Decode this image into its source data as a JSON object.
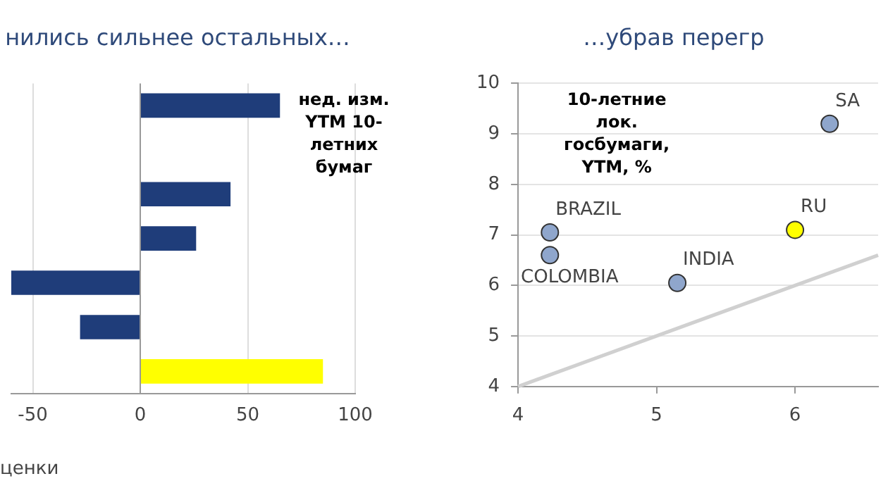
{
  "chart_data": [
    {
      "type": "bar",
      "orientation": "horizontal",
      "title": "нились сильнее остальных…",
      "categories": [
        null,
        null,
        null,
        null,
        null,
        null,
        null
      ],
      "values": [
        65,
        null,
        42,
        26,
        -60,
        -28,
        85
      ],
      "colors": [
        "#1f3d7a",
        "#1f3d7a",
        "#1f3d7a",
        "#1f3d7a",
        "#1f3d7a",
        "#1f3d7a",
        "#ffff00"
      ],
      "xlim": [
        -60,
        100
      ],
      "xticks": [
        -50,
        0,
        50,
        100
      ],
      "grid": "x",
      "legend": false,
      "annotations": [
        "нед. изм. YTM 10-летних бумаг",
        "ценки"
      ]
    },
    {
      "type": "scatter",
      "title": "…убрав перегр",
      "marker": "circle",
      "legend": false,
      "grid": "y",
      "xlim": [
        4,
        6.6
      ],
      "xticks": [
        4,
        5,
        6
      ],
      "ylim": [
        4,
        10
      ],
      "yticks": [
        4,
        5,
        6,
        7,
        8,
        9,
        10
      ],
      "series": [
        {
          "x": [
            4.23,
            4.23,
            5.15,
            6.0,
            6.25
          ],
          "values": [
            7.05,
            6.6,
            6.05,
            7.1,
            9.2
          ],
          "colors": [
            "#8fa6cc",
            "#8fa6cc",
            "#8fa6cc",
            "#ffff00",
            "#8fa6cc"
          ]
        },
        {
          "type": "line",
          "color": "#d0d0d0",
          "marker": "none",
          "x": [
            4,
            6.6
          ],
          "values": [
            4,
            6.6
          ]
        }
      ],
      "annotations": [
        "10-летние лок. госбумаги, YTM, %",
        {
          "text": "BRAZIL",
          "x": 4.23,
          "y": 7.05
        },
        {
          "text": "COLOMBIA",
          "x": 4.23,
          "y": 6.6
        },
        {
          "text": "INDIA",
          "x": 5.15,
          "y": 6.05
        },
        {
          "text": "RU",
          "x": 6.0,
          "y": 7.1
        },
        {
          "text": "SA",
          "x": 6.25,
          "y": 9.2
        }
      ]
    }
  ]
}
